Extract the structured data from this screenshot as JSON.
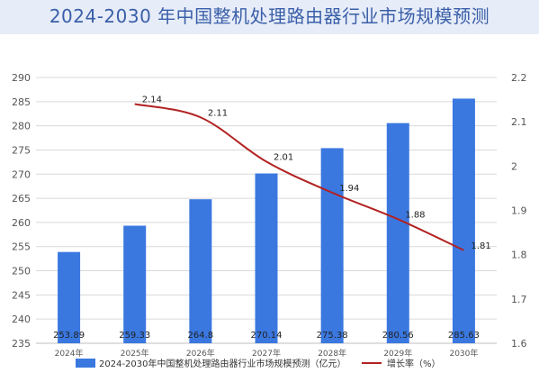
{
  "title": "2024-2030 年中国整机处理路由器行业市场规模预测",
  "chart_data": {
    "type": "bar",
    "categories": [
      "2024年",
      "2025年",
      "2026年",
      "2027年",
      "2028年",
      "2029年",
      "2030年"
    ],
    "series": [
      {
        "name": "2024-2030年中国整机处理路由器行业市场规模预测（亿元）",
        "type": "bar",
        "axis": "left",
        "color": "#3a78e0",
        "values": [
          253.89,
          259.33,
          264.8,
          270.14,
          275.38,
          280.56,
          285.63
        ],
        "labels": [
          "253.89",
          "259.33",
          "264.8",
          "270.14",
          "275.38",
          "280.56",
          "285.63"
        ]
      },
      {
        "name": "增长率（%）",
        "type": "line",
        "axis": "right",
        "color": "#b22222",
        "values": [
          null,
          2.14,
          2.11,
          2.01,
          1.94,
          1.88,
          1.81
        ],
        "labels": [
          "",
          "2.14",
          "2.11",
          "2.01",
          "1.94",
          "1.88",
          "1.81"
        ]
      }
    ],
    "y_left": {
      "min": 235,
      "max": 290,
      "ticks": [
        "235",
        "240",
        "245",
        "250",
        "255",
        "260",
        "265",
        "270",
        "275",
        "280",
        "285",
        "290"
      ]
    },
    "y_right": {
      "min": 1.6,
      "max": 2.2,
      "ticks": [
        "1.6",
        "1.7",
        "1.8",
        "1.9",
        "2",
        "2.1",
        "2.2"
      ]
    },
    "grid": true,
    "legend_position": "bottom"
  }
}
